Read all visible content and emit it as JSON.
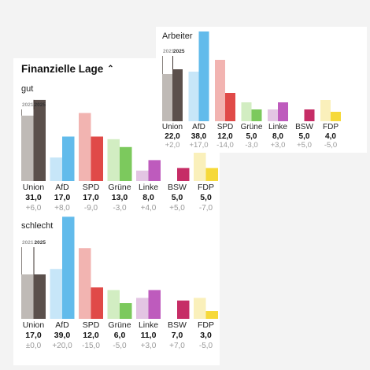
{
  "header": {
    "title": "Finanzielle Lage",
    "toggle_icon": "chevron-up-icon"
  },
  "colors": {
    "Union": [
      "#bfbab6",
      "#5b504c"
    ],
    "AfD": [
      "#c7e6f8",
      "#62bbeb"
    ],
    "SPD": [
      "#f2b4b1",
      "#e04a48"
    ],
    "Grüne": [
      "#d2edc2",
      "#7cc95d"
    ],
    "Linke": [
      "#e3c5e3",
      "#be5bbd"
    ],
    "BSW": [
      "#ffffff",
      "#c62d66"
    ],
    "FDP": [
      "#faf0bb",
      "#f6d93a"
    ]
  },
  "chart_data": [
    {
      "type": "bar",
      "title": "gut",
      "year_labels": [
        "2021",
        "2025"
      ],
      "categories": [
        "Union",
        "AfD",
        "SPD",
        "Grüne",
        "Linke",
        "BSW",
        "FDP"
      ],
      "series": [
        {
          "name": "2021",
          "values": [
            25.0,
            9.0,
            26.0,
            16.0,
            4.0,
            null,
            12.0
          ]
        },
        {
          "name": "2025",
          "values": [
            31.0,
            17.0,
            17.0,
            13.0,
            8.0,
            5.0,
            5.0
          ]
        }
      ],
      "value_labels": [
        "31,0",
        "17,0",
        "17,0",
        "13,0",
        "8,0",
        "5,0",
        "5,0"
      ],
      "change_labels": [
        "+6,0",
        "+8,0",
        "-9,0",
        "-3,0",
        "+4,0",
        "+5,0",
        "-7,0"
      ],
      "ylim": [
        0,
        40
      ]
    },
    {
      "type": "bar",
      "title": "schlecht",
      "year_labels": [
        "2021",
        "2025"
      ],
      "categories": [
        "Union",
        "AfD",
        "SPD",
        "Grüne",
        "Linke",
        "BSW",
        "FDP"
      ],
      "series": [
        {
          "name": "2021",
          "values": [
            17.0,
            19.0,
            27.0,
            11.0,
            8.0,
            null,
            8.0
          ]
        },
        {
          "name": "2025",
          "values": [
            17.0,
            39.0,
            12.0,
            6.0,
            11.0,
            7.0,
            3.0
          ]
        }
      ],
      "value_labels": [
        "17,0",
        "39,0",
        "12,0",
        "6,0",
        "11,0",
        "7,0",
        "3,0"
      ],
      "change_labels": [
        "±0,0",
        "+20,0",
        "-15,0",
        "-5,0",
        "+3,0",
        "+7,0",
        "-5,0"
      ],
      "ylim": [
        0,
        40
      ]
    },
    {
      "type": "bar",
      "title": "Arbeiter",
      "year_labels": [
        "2021",
        "2025"
      ],
      "categories": [
        "Union",
        "AfD",
        "SPD",
        "Grüne",
        "Linke",
        "BSW",
        "FDP"
      ],
      "series": [
        {
          "name": "2021",
          "values": [
            20.0,
            21.0,
            26.0,
            8.0,
            5.0,
            null,
            9.0
          ]
        },
        {
          "name": "2025",
          "values": [
            22.0,
            38.0,
            12.0,
            5.0,
            8.0,
            5.0,
            4.0
          ]
        }
      ],
      "value_labels": [
        "22,0",
        "38,0",
        "12,0",
        "5,0",
        "8,0",
        "5,0",
        "4,0"
      ],
      "change_labels": [
        "+2,0",
        "+17,0",
        "-14,0",
        "-3,0",
        "+3,0",
        "+5,0",
        "-5,0"
      ],
      "ylim": [
        0,
        40
      ]
    }
  ]
}
